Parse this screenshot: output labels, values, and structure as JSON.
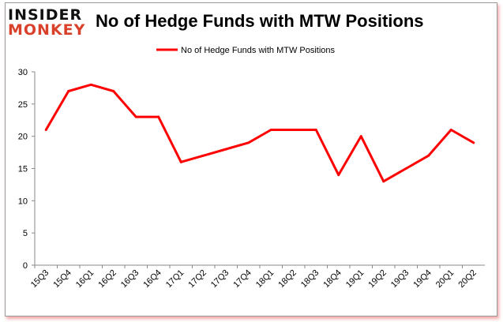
{
  "logo": {
    "line1": "INSIDER",
    "line2": "MONKEY"
  },
  "chart_data": {
    "type": "line",
    "title": "No of Hedge Funds with MTW Positions",
    "categories": [
      "15Q3",
      "15Q4",
      "16Q1",
      "16Q2",
      "16Q3",
      "16Q4",
      "17Q1",
      "17Q2",
      "17Q3",
      "17Q4",
      "18Q1",
      "18Q2",
      "18Q3",
      "18Q4",
      "19Q1",
      "19Q2",
      "19Q3",
      "19Q4",
      "20Q1",
      "20Q2"
    ],
    "series": [
      {
        "name": "No of Hedge Funds with MTW Positions",
        "color": "#ff0000",
        "values": [
          21,
          27,
          28,
          27,
          23,
          23,
          16,
          17,
          18,
          19,
          21,
          21,
          21,
          14,
          20,
          13,
          15,
          17,
          21,
          19
        ]
      }
    ],
    "ylim": [
      0,
      30
    ],
    "yticks": [
      0,
      5,
      10,
      15,
      20,
      25,
      30
    ],
    "grid": false,
    "legend": "top-center"
  }
}
